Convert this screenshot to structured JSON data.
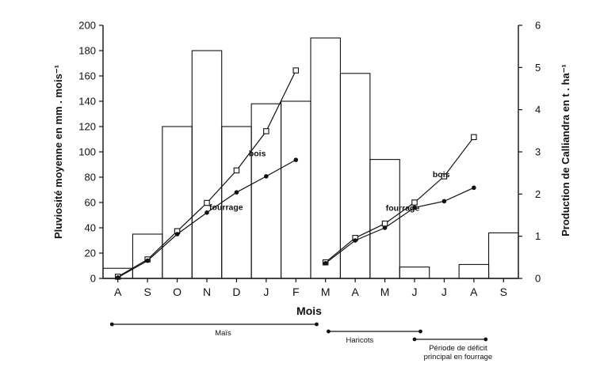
{
  "chart_data": {
    "type": "bar",
    "months": [
      "A",
      "S",
      "O",
      "N",
      "D",
      "J",
      "F",
      "M",
      "A",
      "M",
      "J",
      "J",
      "A",
      "S"
    ],
    "xlabel": "Mois",
    "ylabel": "Pluviosité moyenne en mm . mois⁻¹",
    "ylabel_right": "Production de Calliandra en t . ha⁻¹",
    "ylim": [
      0,
      200
    ],
    "ylim_right": [
      0,
      6
    ],
    "yticks": [
      0,
      20,
      40,
      60,
      80,
      100,
      120,
      140,
      160,
      180,
      200
    ],
    "yticks_right": [
      0,
      1,
      2,
      3,
      4,
      5,
      6
    ],
    "rainfall": [
      8,
      35,
      120,
      180,
      120,
      138,
      140,
      190,
      162,
      94,
      9,
      0,
      11,
      36
    ],
    "series": [
      {
        "name": "bois",
        "marker": "open-square",
        "segments": [
          {
            "x": [
              0,
              1,
              2,
              3,
              4,
              5,
              6
            ],
            "y": [
              0.04,
              0.45,
              1.12,
              1.79,
              2.56,
              3.49,
              4.93
            ]
          },
          {
            "x": [
              7,
              8,
              9,
              10,
              11,
              12
            ],
            "y": [
              0.38,
              0.96,
              1.3,
              1.8,
              2.42,
              3.35
            ]
          }
        ]
      },
      {
        "name": "fourrage",
        "marker": "filled-circle",
        "segments": [
          {
            "x": [
              0,
              1,
              2,
              3,
              4,
              5,
              6
            ],
            "y": [
              0.02,
              0.42,
              1.05,
              1.56,
              2.04,
              2.42,
              2.81
            ]
          },
          {
            "x": [
              7,
              8,
              9,
              10,
              11,
              12
            ],
            "y": [
              0.36,
              0.9,
              1.2,
              1.68,
              1.83,
              2.15
            ]
          }
        ]
      }
    ],
    "series_labels": [
      {
        "text": "bois",
        "x": 5.2,
        "y": 2.9
      },
      {
        "text": "fourrage",
        "x": 4.15,
        "y": 1.62
      },
      {
        "text": "bois",
        "x": 11.4,
        "y": 2.4
      },
      {
        "text": "fourrage",
        "x": 10.1,
        "y": 1.6
      }
    ],
    "periods": [
      {
        "label": "Maïs",
        "start": 0.3,
        "end": 7.2
      },
      {
        "label": "Haricots",
        "start": 7.6,
        "end": 10.7
      },
      {
        "label": "Période de déficit principal en fourrage",
        "start": 10.5,
        "end": 12.9
      }
    ],
    "grid": false,
    "legend": "none"
  }
}
